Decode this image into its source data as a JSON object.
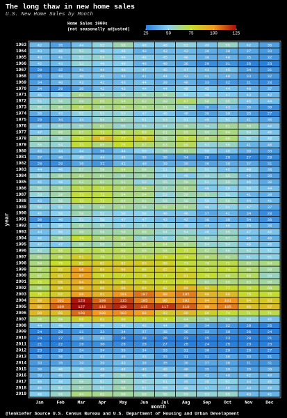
{
  "chart_data": {
    "type": "heatmap",
    "title": "The long thaw in new home sales",
    "subtitle": "U.S. New Home Sales by Month",
    "legend_title": "Home Sales 1000s",
    "legend_subtitle": "(not seasonally adjusted)",
    "legend_ticks": [
      25,
      50,
      75,
      100,
      125
    ],
    "legend_colors": [
      "#2a7fd8",
      "#8ad0ee",
      "#c4dc2c",
      "#f29a1e",
      "#a40a0a"
    ],
    "x_label": "month",
    "y_label": "year",
    "caption": "@lenkiefer Source U.S. Census Bureau and U.S. Department of Housing and Urban Development",
    "months": [
      "Jan",
      "Feb",
      "Mar",
      "Apr",
      "May",
      "Jun",
      "Jul",
      "Aug",
      "Sep",
      "Oct",
      "Nov",
      "Dec"
    ],
    "years": [
      1963,
      1964,
      1965,
      1966,
      1967,
      1968,
      1969,
      1970,
      1971,
      1972,
      1973,
      1974,
      1975,
      1976,
      1977,
      1978,
      1979,
      1980,
      1981,
      1982,
      1983,
      1984,
      1985,
      1986,
      1987,
      1988,
      1989,
      1990,
      1991,
      1992,
      1993,
      1994,
      1995,
      1996,
      1997,
      1998,
      1999,
      2000,
      2001,
      2002,
      2003,
      2004,
      2005,
      2006,
      2007,
      2008,
      2009,
      2010,
      2011,
      2012,
      2013,
      2014,
      2015,
      2016,
      2017,
      2018,
      2019
    ],
    "values": [
      [
        42,
        35,
        44,
        52,
        58,
        48,
        48,
        52,
        45,
        55,
        42,
        35
      ],
      [
        43,
        46,
        53,
        49,
        49,
        40,
        43,
        43,
        39,
        38,
        37,
        33
      ],
      [
        43,
        41,
        52,
        54,
        49,
        48,
        45,
        46,
        39,
        40,
        35,
        32
      ],
      [
        42,
        43,
        53,
        49,
        49,
        40,
        40,
        36,
        29,
        31,
        26,
        23
      ],
      [
        29,
        32,
        41,
        44,
        49,
        47,
        46,
        47,
        43,
        45,
        34,
        31
      ],
      [
        35,
        43,
        46,
        46,
        43,
        41,
        44,
        43,
        41,
        40,
        33,
        32
      ],
      [
        34,
        40,
        43,
        42,
        43,
        44,
        39,
        40,
        33,
        32,
        31,
        28
      ],
      [
        34,
        29,
        36,
        42,
        43,
        44,
        44,
        48,
        45,
        44,
        40,
        37
      ],
      [
        45,
        50,
        62,
        56,
        55,
        56,
        58,
        51,
        49,
        47,
        43,
        42
      ],
      [
        51,
        56,
        60,
        65,
        64,
        62,
        60,
        67,
        58,
        55,
        46,
        44
      ],
      [
        55,
        60,
        68,
        63,
        65,
        63,
        61,
        54,
        36,
        43,
        36,
        30
      ],
      [
        38,
        43,
        52,
        53,
        53,
        47,
        46,
        40,
        35,
        39,
        33,
        27
      ],
      [
        29,
        34,
        44,
        54,
        57,
        51,
        53,
        51,
        45,
        51,
        41,
        36
      ],
      [
        46,
        53,
        55,
        62,
        55,
        54,
        54,
        58,
        54,
        61,
        58,
        46
      ],
      [
        47,
        60,
        67,
        71,
        68,
        69,
        61,
        65,
        59,
        64,
        54,
        46
      ],
      [
        57,
        56,
        73,
        85,
        77,
        79,
        62,
        72,
        65,
        66,
        52,
        48
      ],
      [
        55,
        54,
        73,
        65,
        75,
        67,
        63,
        69,
        53,
        56,
        41,
        40
      ],
      [
        43,
        44,
        44,
        36,
        44,
        50,
        55,
        61,
        50,
        46,
        39,
        33
      ],
      [
        37,
        40,
        49,
        44,
        45,
        38,
        36,
        34,
        28,
        29,
        27,
        29
      ],
      [
        28,
        29,
        36,
        32,
        41,
        40,
        39,
        39,
        36,
        38,
        37,
        31
      ],
      [
        44,
        46,
        57,
        59,
        64,
        59,
        51,
        60,
        51,
        45,
        48,
        38
      ],
      [
        52,
        58,
        63,
        61,
        58,
        59,
        51,
        48,
        53,
        55,
        42,
        35
      ],
      [
        45,
        48,
        62,
        62,
        61,
        52,
        55,
        59,
        51,
        55,
        46,
        38
      ],
      [
        55,
        59,
        71,
        72,
        67,
        64,
        57,
        62,
        48,
        50,
        50,
        44
      ],
      [
        53,
        59,
        73,
        72,
        64,
        64,
        53,
        59,
        57,
        51,
        41,
        39
      ],
      [
        43,
        56,
        72,
        72,
        64,
        61,
        55,
        58,
        50,
        56,
        44,
        41
      ],
      [
        52,
        51,
        58,
        60,
        61,
        58,
        62,
        61,
        49,
        51,
        47,
        37
      ],
      [
        45,
        50,
        58,
        52,
        50,
        50,
        46,
        46,
        37,
        41,
        34,
        29
      ],
      [
        30,
        40,
        51,
        50,
        47,
        47,
        43,
        42,
        38,
        38,
        34,
        30
      ],
      [
        44,
        50,
        58,
        55,
        52,
        53,
        52,
        49,
        44,
        46,
        45,
        38
      ],
      [
        44,
        50,
        60,
        58,
        59,
        60,
        54,
        54,
        48,
        55,
        47,
        46
      ],
      [
        46,
        58,
        74,
        65,
        65,
        55,
        52,
        59,
        54,
        57,
        45,
        40
      ],
      [
        47,
        47,
        60,
        58,
        63,
        64,
        64,
        63,
        54,
        54,
        46,
        45
      ],
      [
        54,
        68,
        70,
        70,
        69,
        65,
        66,
        73,
        62,
        56,
        54,
        51
      ],
      [
        61,
        69,
        81,
        70,
        71,
        71,
        76,
        74,
        66,
        62,
        51,
        51
      ],
      [
        64,
        75,
        81,
        82,
        82,
        83,
        80,
        73,
        70,
        71,
        63,
        64
      ],
      [
        67,
        82,
        98,
        84,
        86,
        80,
        82,
        78,
        71,
        74,
        66,
        60
      ],
      [
        67,
        83,
        97,
        78,
        77,
        78,
        77,
        81,
        74,
        69,
        68,
        56
      ],
      [
        72,
        85,
        94,
        84,
        80,
        79,
        77,
        77,
        62,
        65,
        63,
        60
      ],
      [
        66,
        84,
        90,
        86,
        88,
        84,
        82,
        90,
        82,
        77,
        73,
        68
      ],
      [
        76,
        82,
        98,
        91,
        101,
        107,
        99,
        105,
        90,
        88,
        76,
        75
      ],
      [
        89,
        102,
        123,
        109,
        115,
        105,
        96,
        102,
        94,
        101,
        84,
        83
      ],
      [
        92,
        109,
        127,
        116,
        120,
        115,
        117,
        110,
        99,
        105,
        86,
        87
      ],
      [
        89,
        88,
        108,
        100,
        102,
        98,
        83,
        88,
        80,
        74,
        71,
        71
      ],
      [
        66,
        68,
        80,
        83,
        80,
        77,
        74,
        64,
        59,
        56,
        53,
        45
      ],
      [
        44,
        48,
        49,
        49,
        49,
        46,
        44,
        39,
        34,
        32,
        28,
        26
      ],
      [
        24,
        29,
        31,
        32,
        34,
        37,
        38,
        36,
        33,
        30,
        26,
        24
      ],
      [
        24,
        27,
        36,
        41,
        26,
        28,
        26,
        23,
        25,
        23,
        20,
        21
      ],
      [
        21,
        22,
        28,
        30,
        28,
        28,
        27,
        25,
        24,
        25,
        23,
        23
      ],
      [
        23,
        29,
        34,
        34,
        35,
        34,
        33,
        31,
        30,
        29,
        28,
        27
      ],
      [
        32,
        36,
        41,
        43,
        40,
        43,
        33,
        31,
        31,
        36,
        33,
        31
      ],
      [
        33,
        35,
        39,
        39,
        43,
        38,
        35,
        36,
        37,
        36,
        31,
        31
      ],
      [
        36,
        48,
        48,
        45,
        46,
        43,
        46,
        40,
        35,
        39,
        35,
        38
      ],
      [
        39,
        45,
        51,
        48,
        55,
        48,
        46,
        46,
        41,
        40,
        42,
        40
      ],
      [
        45,
        48,
        56,
        51,
        56,
        52,
        51,
        45,
        48,
        51,
        44,
        46
      ],
      [
        45,
        52,
        57,
        52,
        58,
        51,
        50,
        49,
        47,
        46,
        44,
        45
      ],
      [
        48,
        55,
        64,
        62,
        60,
        58,
        56,
        55,
        53,
        55,
        43,
        41
      ]
    ]
  }
}
